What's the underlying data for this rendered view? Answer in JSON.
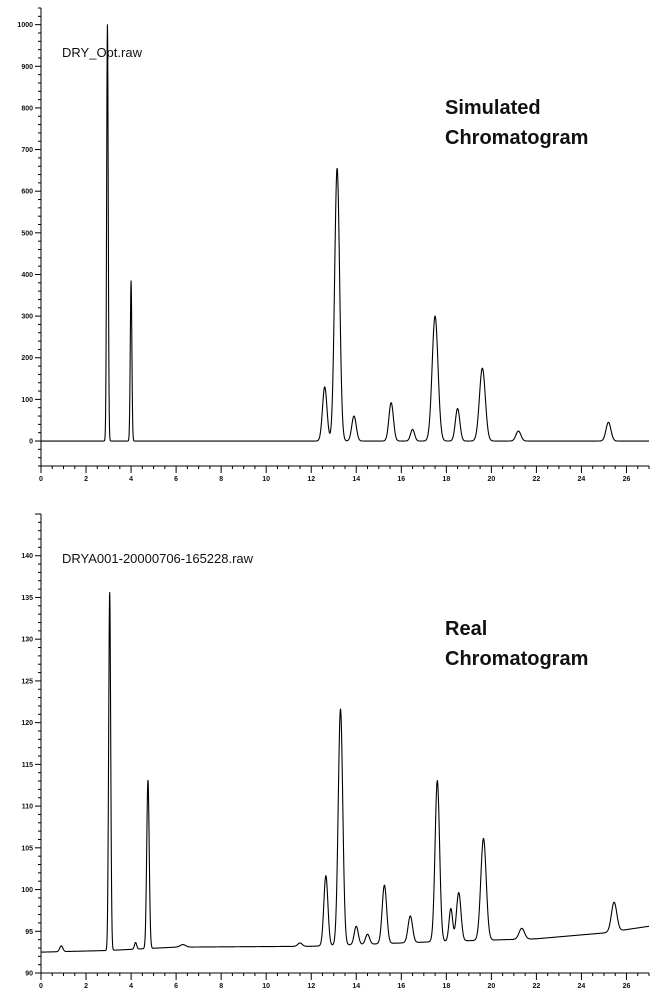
{
  "chart_data": [
    {
      "type": "line",
      "file_label": "DRY_Opt.raw",
      "title_lines": [
        "Simulated",
        "Chromatogram"
      ],
      "xlim": [
        0,
        27
      ],
      "ylim": [
        -60,
        1040
      ],
      "x_ticks": [
        0,
        2,
        4,
        6,
        8,
        10,
        12,
        14,
        16,
        18,
        20,
        22,
        24,
        26
      ],
      "y_ticks": [
        0,
        100,
        200,
        300,
        400,
        500,
        600,
        700,
        800,
        900,
        1000
      ],
      "baseline": 0,
      "peaks": [
        {
          "x": 2.95,
          "height": 1000,
          "width": 0.035
        },
        {
          "x": 4.0,
          "height": 385,
          "width": 0.035
        },
        {
          "x": 12.6,
          "height": 130,
          "width": 0.1
        },
        {
          "x": 13.15,
          "height": 655,
          "width": 0.11
        },
        {
          "x": 13.9,
          "height": 60,
          "width": 0.1
        },
        {
          "x": 15.55,
          "height": 92,
          "width": 0.1
        },
        {
          "x": 16.5,
          "height": 28,
          "width": 0.09
        },
        {
          "x": 17.5,
          "height": 300,
          "width": 0.13
        },
        {
          "x": 18.5,
          "height": 78,
          "width": 0.1
        },
        {
          "x": 19.6,
          "height": 175,
          "width": 0.13
        },
        {
          "x": 21.2,
          "height": 24,
          "width": 0.11
        },
        {
          "x": 25.2,
          "height": 45,
          "width": 0.11
        }
      ]
    },
    {
      "type": "line",
      "file_label": "DRYA001-20000706-165228.raw",
      "title_lines": [
        "Real",
        "Chromatogram"
      ],
      "xlim": [
        0,
        27
      ],
      "ylim": [
        90,
        145
      ],
      "x_ticks": [
        0,
        2,
        4,
        6,
        8,
        10,
        12,
        14,
        16,
        18,
        20,
        22,
        24,
        26
      ],
      "y_ticks": [
        90,
        95,
        100,
        105,
        110,
        115,
        120,
        125,
        130,
        135,
        140
      ],
      "baseline_points": [
        [
          0,
          92.5
        ],
        [
          3,
          92.7
        ],
        [
          6,
          93.1
        ],
        [
          12,
          93.2
        ],
        [
          18,
          93.8
        ],
        [
          22,
          94.1
        ],
        [
          25,
          94.8
        ],
        [
          27,
          95.6
        ]
      ],
      "peaks": [
        {
          "x": 0.9,
          "height": 0.7,
          "width": 0.07
        },
        {
          "x": 3.05,
          "height": 43,
          "width": 0.045
        },
        {
          "x": 4.2,
          "height": 0.8,
          "width": 0.05
        },
        {
          "x": 4.75,
          "height": 20.2,
          "width": 0.055
        },
        {
          "x": 6.3,
          "height": 0.3,
          "width": 0.12
        },
        {
          "x": 11.5,
          "height": 0.4,
          "width": 0.1
        },
        {
          "x": 12.65,
          "height": 8.4,
          "width": 0.09
        },
        {
          "x": 13.3,
          "height": 28.3,
          "width": 0.1
        },
        {
          "x": 14.0,
          "height": 2.2,
          "width": 0.09
        },
        {
          "x": 14.5,
          "height": 1.2,
          "width": 0.09
        },
        {
          "x": 15.25,
          "height": 7,
          "width": 0.1
        },
        {
          "x": 16.4,
          "height": 3.2,
          "width": 0.1
        },
        {
          "x": 17.6,
          "height": 19.3,
          "width": 0.1
        },
        {
          "x": 18.2,
          "height": 3.9,
          "width": 0.08
        },
        {
          "x": 18.55,
          "height": 5.8,
          "width": 0.1
        },
        {
          "x": 19.65,
          "height": 12.2,
          "width": 0.12
        },
        {
          "x": 21.35,
          "height": 1.3,
          "width": 0.12
        },
        {
          "x": 25.45,
          "height": 3.5,
          "width": 0.12
        }
      ]
    }
  ]
}
